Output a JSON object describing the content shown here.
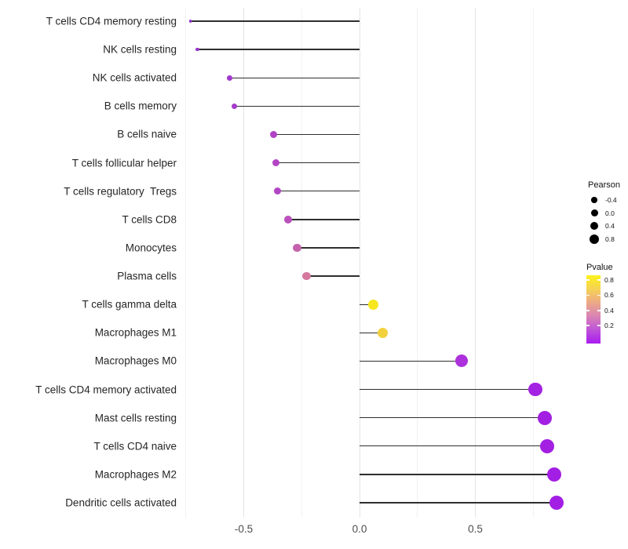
{
  "chart_data": {
    "type": "lollipop",
    "title": "",
    "xlabel": "",
    "ylabel": "",
    "points": [
      {
        "label": "T cells CD4 memory resting",
        "pearson": -0.73,
        "pvalue": 0.12,
        "color": "#9632CE"
      },
      {
        "label": "NK cells resting",
        "pearson": -0.7,
        "pvalue": 0.12,
        "color": "#9A35CC"
      },
      {
        "label": "NK cells activated",
        "pearson": -0.56,
        "pvalue": 0.15,
        "color": "#A238CD"
      },
      {
        "label": "B cells memory",
        "pearson": -0.54,
        "pvalue": 0.16,
        "color": "#A53BCA"
      },
      {
        "label": "B cells naive",
        "pearson": -0.37,
        "pvalue": 0.21,
        "color": "#B242C6"
      },
      {
        "label": "T cells follicular helper",
        "pearson": -0.36,
        "pvalue": 0.21,
        "color": "#B345C4"
      },
      {
        "label": "T cells regulatory  Tregs",
        "pearson": -0.355,
        "pvalue": 0.21,
        "color": "#B246C4"
      },
      {
        "label": "T cells CD8",
        "pearson": -0.31,
        "pvalue": 0.24,
        "color": "#BB50BC"
      },
      {
        "label": "Monocytes",
        "pearson": -0.27,
        "pvalue": 0.3,
        "color": "#C463AC"
      },
      {
        "label": "Plasma cells",
        "pearson": -0.23,
        "pvalue": 0.38,
        "color": "#D4789E"
      },
      {
        "label": "T cells gamma delta",
        "pearson": 0.06,
        "pvalue": 0.82,
        "color": "#F6E71F"
      },
      {
        "label": "Macrophages M1",
        "pearson": 0.1,
        "pvalue": 0.65,
        "color": "#F2D13C"
      },
      {
        "label": "Macrophages M0",
        "pearson": 0.44,
        "pvalue": 0.1,
        "color": "#AC30DC"
      },
      {
        "label": "T cells CD4 memory activated",
        "pearson": 0.76,
        "pvalue": 0.03,
        "color": "#A423E2"
      },
      {
        "label": "Mast cells resting",
        "pearson": 0.8,
        "pvalue": 0.02,
        "color": "#A31FE2"
      },
      {
        "label": "T cells CD4 naive",
        "pearson": 0.81,
        "pvalue": 0.02,
        "color": "#A31FE2"
      },
      {
        "label": "Macrophages M2",
        "pearson": 0.84,
        "pvalue": 0.02,
        "color": "#A21EE4"
      },
      {
        "label": "Dendritic cells activated",
        "pearson": 0.85,
        "pvalue": 0.02,
        "color": "#A21EE4"
      }
    ],
    "x_axis": {
      "tick_labels": [
        "-0.5",
        "0.0",
        "0.5"
      ],
      "tick_values": [
        -0.5,
        0.0,
        0.5
      ],
      "minor_gridlines": [
        -0.75,
        -0.25,
        0.25,
        0.75
      ],
      "range": [
        -0.8,
        0.93
      ],
      "grid": true
    },
    "legend_size": {
      "title": "Pearson",
      "entries": [
        {
          "label": "-0.4",
          "value": -0.4,
          "diameter": 7.5
        },
        {
          "label": "0.0",
          "value": 0.0,
          "diameter": 9
        },
        {
          "label": "0.4",
          "value": 0.4,
          "diameter": 10.5
        },
        {
          "label": "0.8",
          "value": 0.8,
          "diameter": 12
        }
      ],
      "dot_color": "#000000"
    },
    "legend_color": {
      "title": "Pvalue",
      "tick_labels": [
        "0.8",
        "0.6",
        "0.4",
        "0.2"
      ],
      "tick_values": [
        0.8,
        0.6,
        0.4,
        0.2
      ],
      "gradient_top_to_bottom": [
        "#FCF21A",
        "#F6D254",
        "#ECA987",
        "#D984B4",
        "#BE53D8",
        "#A81CEF"
      ]
    },
    "stem_color": "#2e2e2e",
    "background": "#ffffff"
  }
}
